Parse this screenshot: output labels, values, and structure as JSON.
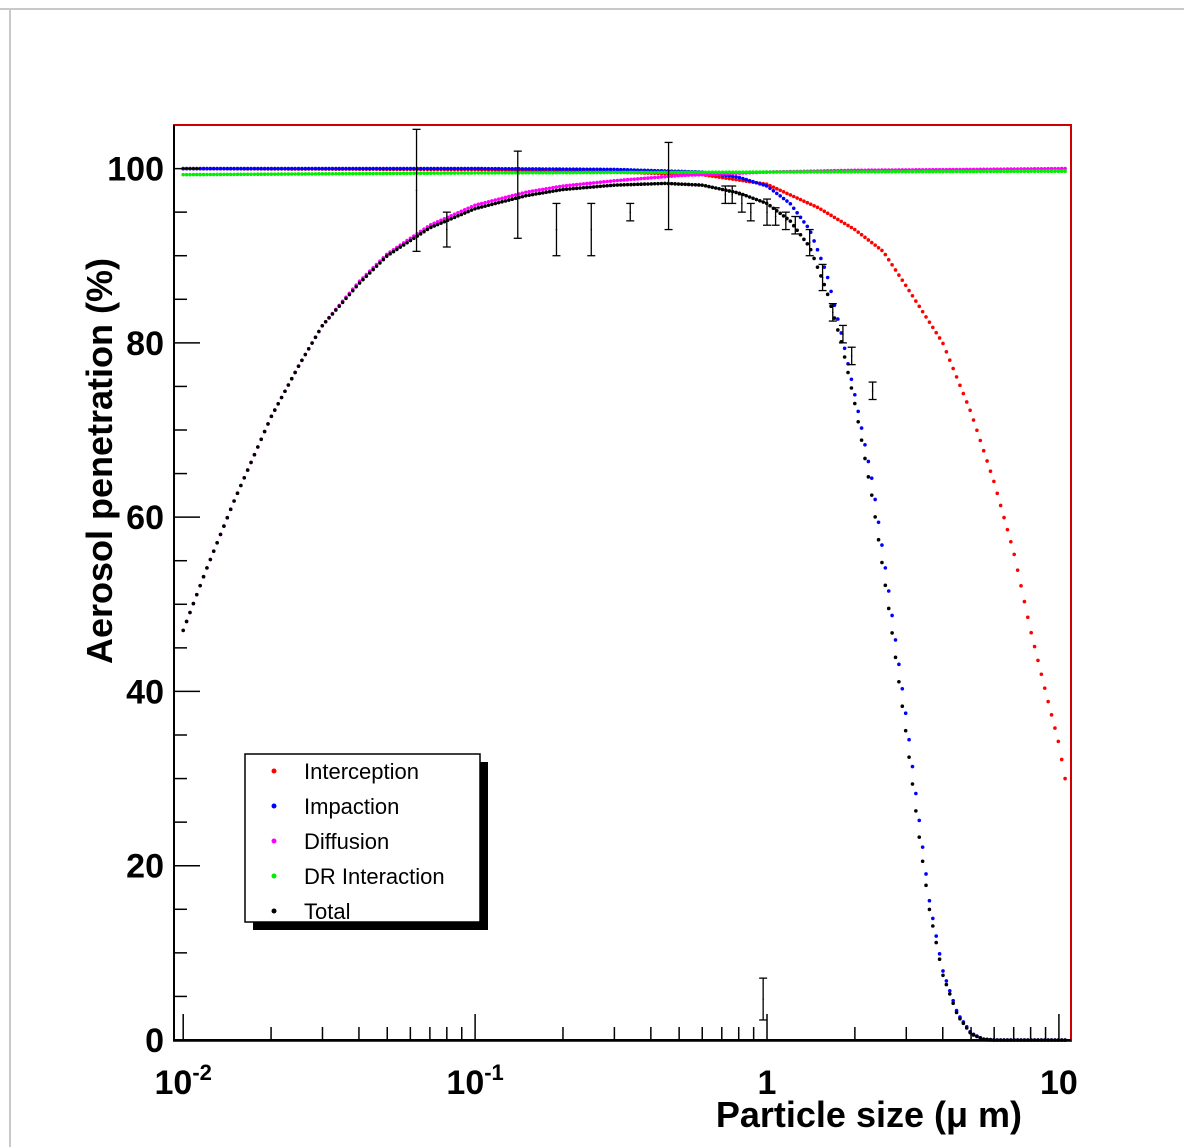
{
  "chart_data": {
    "type": "scatter",
    "title": "",
    "xlabel": "Particle size (μ m)",
    "ylabel": "Aerosol penetration (%)",
    "xscale": "log",
    "xlim": [
      0.0093,
      11
    ],
    "ylim": [
      0,
      105
    ],
    "x_ticks": [
      {
        "value": 0.01,
        "base": "10",
        "exp": "-2"
      },
      {
        "value": 0.1,
        "base": "10",
        "exp": "-1"
      },
      {
        "value": 1,
        "base": "1",
        "exp": ""
      },
      {
        "value": 10,
        "base": "10",
        "exp": ""
      }
    ],
    "y_ticks": [
      {
        "value": 0,
        "label": "0"
      },
      {
        "value": 20,
        "label": "20"
      },
      {
        "value": 40,
        "label": "40"
      },
      {
        "value": 60,
        "label": "60"
      },
      {
        "value": 80,
        "label": "80"
      },
      {
        "value": 100,
        "label": "100"
      }
    ],
    "grid": false,
    "legend_position": "bottom-left",
    "frame_color": "#cc0000",
    "series": [
      {
        "name": "Interception",
        "color": "#ff0000",
        "points": [
          [
            0.01,
            99.99
          ],
          [
            0.1,
            99.9
          ],
          [
            0.3,
            99.6
          ],
          [
            0.6,
            99.3
          ],
          [
            1,
            98.2
          ],
          [
            1.5,
            95.5
          ],
          [
            2,
            93
          ],
          [
            2.5,
            90.5
          ],
          [
            3,
            86.5
          ],
          [
            4,
            80
          ],
          [
            5,
            72
          ],
          [
            6,
            64
          ],
          [
            7,
            56
          ],
          [
            8,
            47
          ],
          [
            9,
            40
          ],
          [
            10,
            34
          ],
          [
            10.5,
            30
          ]
        ]
      },
      {
        "name": "Impaction",
        "color": "#0000ff",
        "points": [
          [
            0.01,
            100
          ],
          [
            0.1,
            100
          ],
          [
            0.3,
            99.9
          ],
          [
            0.6,
            99.6
          ],
          [
            0.8,
            99
          ],
          [
            1,
            98
          ],
          [
            1.2,
            96
          ],
          [
            1.4,
            93
          ],
          [
            1.6,
            88
          ],
          [
            1.8,
            81
          ],
          [
            2,
            74
          ],
          [
            2.3,
            64
          ],
          [
            2.6,
            52
          ],
          [
            3,
            37
          ],
          [
            3.3,
            26
          ],
          [
            3.6,
            16
          ],
          [
            4,
            8
          ],
          [
            4.5,
            3
          ],
          [
            5,
            0.8
          ],
          [
            5.5,
            0.1
          ],
          [
            6,
            0
          ],
          [
            10.5,
            0
          ]
        ]
      },
      {
        "name": "Diffusion",
        "color": "#ff00ff",
        "points": [
          [
            0.01,
            47
          ],
          [
            0.012,
            54
          ],
          [
            0.015,
            62
          ],
          [
            0.02,
            71.5
          ],
          [
            0.025,
            77.5
          ],
          [
            0.03,
            82
          ],
          [
            0.04,
            87
          ],
          [
            0.05,
            90.2
          ],
          [
            0.07,
            93.5
          ],
          [
            0.1,
            95.8
          ],
          [
            0.15,
            97.3
          ],
          [
            0.2,
            98
          ],
          [
            0.3,
            98.6
          ],
          [
            0.5,
            99.2
          ],
          [
            1,
            99.6
          ],
          [
            2,
            99.8
          ],
          [
            5,
            99.9
          ],
          [
            10.5,
            100
          ]
        ]
      },
      {
        "name": "DR Interaction",
        "color": "#00ee00",
        "points": [
          [
            0.01,
            99.3
          ],
          [
            0.1,
            99.5
          ],
          [
            1,
            99.6
          ],
          [
            10.5,
            99.7
          ]
        ]
      },
      {
        "name": "Total",
        "color": "#000000",
        "points": [
          [
            0.01,
            47
          ],
          [
            0.012,
            54
          ],
          [
            0.015,
            62
          ],
          [
            0.02,
            71.5
          ],
          [
            0.025,
            77.5
          ],
          [
            0.03,
            82
          ],
          [
            0.04,
            86.8
          ],
          [
            0.05,
            90
          ],
          [
            0.07,
            93.2
          ],
          [
            0.1,
            95.4
          ],
          [
            0.15,
            96.9
          ],
          [
            0.2,
            97.6
          ],
          [
            0.3,
            98.1
          ],
          [
            0.45,
            98.3
          ],
          [
            0.6,
            98.1
          ],
          [
            0.8,
            97.2
          ],
          [
            1,
            96
          ],
          [
            1.2,
            94
          ],
          [
            1.4,
            91
          ],
          [
            1.6,
            86
          ],
          [
            1.8,
            80
          ],
          [
            2,
            73
          ],
          [
            2.3,
            62
          ],
          [
            2.6,
            50
          ],
          [
            3,
            35
          ],
          [
            3.3,
            24
          ],
          [
            3.6,
            15
          ],
          [
            4,
            7.5
          ],
          [
            4.5,
            2.8
          ],
          [
            5,
            0.7
          ],
          [
            5.5,
            0.1
          ],
          [
            6,
            0
          ],
          [
            10.5,
            0
          ]
        ]
      }
    ],
    "measurements": [
      {
        "x": 0.063,
        "y": 97.5,
        "err": 7
      },
      {
        "x": 0.08,
        "y": 93,
        "err": 2
      },
      {
        "x": 0.14,
        "y": 97,
        "err": 5
      },
      {
        "x": 0.19,
        "y": 93,
        "err": 3
      },
      {
        "x": 0.25,
        "y": 93,
        "err": 3
      },
      {
        "x": 0.34,
        "y": 95,
        "err": 1
      },
      {
        "x": 0.46,
        "y": 98,
        "err": 5
      },
      {
        "x": 0.72,
        "y": 97,
        "err": 1
      },
      {
        "x": 0.76,
        "y": 97,
        "err": 1
      },
      {
        "x": 0.82,
        "y": 96,
        "err": 1
      },
      {
        "x": 0.88,
        "y": 95,
        "err": 1
      },
      {
        "x": 0.97,
        "y": 4.7,
        "err": 2.4
      },
      {
        "x": 1.0,
        "y": 95,
        "err": 1.5
      },
      {
        "x": 1.07,
        "y": 94.5,
        "err": 1
      },
      {
        "x": 1.16,
        "y": 94,
        "err": 1
      },
      {
        "x": 1.25,
        "y": 93.5,
        "err": 1
      },
      {
        "x": 1.4,
        "y": 91.5,
        "err": 1.5
      },
      {
        "x": 1.55,
        "y": 87.5,
        "err": 1.5
      },
      {
        "x": 1.68,
        "y": 83.5,
        "err": 1
      },
      {
        "x": 1.82,
        "y": 81,
        "err": 1
      },
      {
        "x": 1.95,
        "y": 78.5,
        "err": 1
      },
      {
        "x": 2.3,
        "y": 74.5,
        "err": 1
      }
    ]
  }
}
